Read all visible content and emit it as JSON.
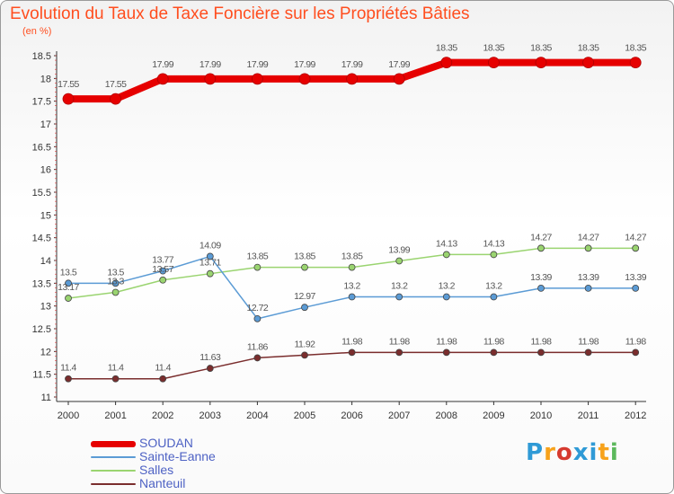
{
  "title": "Evolution du Taux de Taxe Foncière sur les Propriétés Bâties",
  "unit_label": "(en %)",
  "logo": {
    "letters": [
      "P",
      "r",
      "o",
      "x",
      "i",
      "t",
      "i"
    ],
    "colors": [
      "#2f9ad6",
      "#f7a21b",
      "#d63a2f",
      "#2f9ad6",
      "#2f9ad6",
      "#f7a21b",
      "#5cb85c"
    ]
  },
  "chart_data": {
    "type": "line",
    "x": [
      "2000",
      "2001",
      "2002",
      "2003",
      "2004",
      "2005",
      "2006",
      "2007",
      "2008",
      "2009",
      "2010",
      "2011",
      "2012"
    ],
    "ylim": [
      11,
      18.5
    ],
    "yticks": [
      "11",
      "11.5",
      "12",
      "12.5",
      "13",
      "13.5",
      "14",
      "14.5",
      "15",
      "15.5",
      "16",
      "16.5",
      "17",
      "17.5",
      "18",
      "18.5"
    ],
    "grid": false,
    "legend_position": "bottom-left",
    "series": [
      {
        "name": "SOUDAN",
        "color": "#e60000",
        "values": [
          17.55,
          17.55,
          17.99,
          17.99,
          17.99,
          17.99,
          17.99,
          17.99,
          18.35,
          18.35,
          18.35,
          18.35,
          18.35
        ],
        "labels": [
          "17.55",
          "17.55",
          "17.99",
          "17.99",
          "17.99",
          "17.99",
          "17.99",
          "17.99",
          "18.35",
          "18.35",
          "18.35",
          "18.35",
          "18.35"
        ]
      },
      {
        "name": "Sainte-Eanne",
        "color": "#5b9bd5",
        "values": [
          13.5,
          13.5,
          13.77,
          14.09,
          12.72,
          12.97,
          13.2,
          13.2,
          13.2,
          13.2,
          13.39,
          13.39,
          13.39
        ],
        "labels": [
          "13.5",
          "13.5",
          "13.77",
          "14.09",
          "12.72",
          "12.97",
          "13.2",
          "13.2",
          "13.2",
          "13.2",
          "13.39",
          "13.39",
          "13.39"
        ]
      },
      {
        "name": "Salles",
        "color": "#9ad470",
        "values": [
          13.17,
          13.3,
          13.57,
          13.71,
          13.85,
          13.85,
          13.85,
          13.99,
          14.13,
          14.13,
          14.27,
          14.27,
          14.27
        ],
        "labels": [
          "13.17",
          "13.3",
          "13.57",
          "13.71",
          "13.85",
          "13.85",
          "13.85",
          "13.99",
          "14.13",
          "14.13",
          "14.27",
          "14.27",
          "14.27"
        ]
      },
      {
        "name": "Nanteuil",
        "color": "#7a2d2d",
        "values": [
          11.4,
          11.4,
          11.4,
          11.63,
          11.86,
          11.92,
          11.98,
          11.98,
          11.98,
          11.98,
          11.98,
          11.98,
          11.98
        ],
        "labels": [
          "11.4",
          "11.4",
          "11.4",
          "11.63",
          "11.86",
          "11.92",
          "11.98",
          "11.98",
          "11.98",
          "11.98",
          "11.98",
          "11.98",
          "11.98"
        ]
      }
    ]
  }
}
